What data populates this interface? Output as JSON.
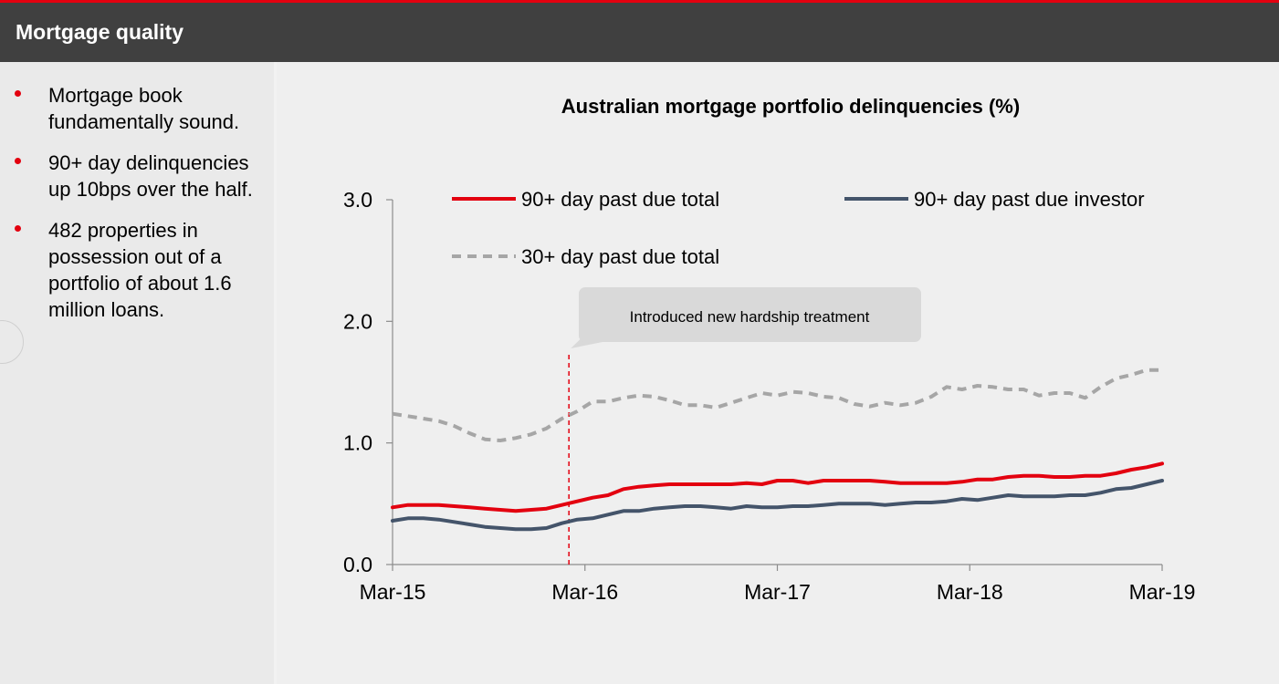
{
  "header": {
    "title": "Mortgage quality"
  },
  "sidebar": {
    "bullets": [
      "Mortgage book fundamentally sound.",
      "90+ day delinquencies up 10bps over the half.",
      "482 properties in possession out of a portfolio of about 1.6 million loans."
    ]
  },
  "colors": {
    "accent": "#e3000f",
    "header": "#404040",
    "investor": "#44546a",
    "thirty": "#a6a6a6"
  },
  "chart_data": {
    "type": "line",
    "title": "Australian mortgage portfolio delinquencies (%)",
    "xlabel": "",
    "ylabel": "",
    "x_tick_labels": [
      "Mar-15",
      "Mar-16",
      "Mar-17",
      "Mar-18",
      "Mar-19"
    ],
    "y_tick_labels": [
      "3.0",
      "2.0",
      "1.0",
      "0.0"
    ],
    "ylim": [
      0,
      3
    ],
    "x_start": "Mar-15",
    "x_end": "Mar-19",
    "grid": false,
    "legend_position": "top",
    "annotation": {
      "text": "Introduced new hardship treatment",
      "x": "Feb-16"
    },
    "series": [
      {
        "name": "90+ day past due total",
        "style": "solid",
        "color": "#e3000f",
        "values": [
          0.47,
          0.49,
          0.49,
          0.49,
          0.48,
          0.47,
          0.46,
          0.45,
          0.44,
          0.45,
          0.46,
          0.49,
          0.52,
          0.55,
          0.57,
          0.62,
          0.64,
          0.65,
          0.66,
          0.66,
          0.66,
          0.66,
          0.66,
          0.67,
          0.66,
          0.69,
          0.69,
          0.67,
          0.69,
          0.69,
          0.69,
          0.69,
          0.68,
          0.67,
          0.67,
          0.67,
          0.67,
          0.68,
          0.7,
          0.7,
          0.72,
          0.73,
          0.73,
          0.72,
          0.72,
          0.73,
          0.73,
          0.75,
          0.78,
          0.8,
          0.83
        ]
      },
      {
        "name": "90+ day past due investor",
        "style": "solid",
        "color": "#44546a",
        "values": [
          0.36,
          0.38,
          0.38,
          0.37,
          0.35,
          0.33,
          0.31,
          0.3,
          0.29,
          0.29,
          0.3,
          0.34,
          0.37,
          0.38,
          0.41,
          0.44,
          0.44,
          0.46,
          0.47,
          0.48,
          0.48,
          0.47,
          0.46,
          0.48,
          0.47,
          0.47,
          0.48,
          0.48,
          0.49,
          0.5,
          0.5,
          0.5,
          0.49,
          0.5,
          0.51,
          0.51,
          0.52,
          0.54,
          0.53,
          0.55,
          0.57,
          0.56,
          0.56,
          0.56,
          0.57,
          0.57,
          0.59,
          0.62,
          0.63,
          0.66,
          0.69
        ]
      },
      {
        "name": "30+ day past due total",
        "style": "dashed",
        "color": "#a6a6a6",
        "values": [
          1.24,
          1.22,
          1.2,
          1.18,
          1.14,
          1.08,
          1.03,
          1.02,
          1.04,
          1.07,
          1.12,
          1.2,
          1.26,
          1.34,
          1.34,
          1.37,
          1.39,
          1.38,
          1.35,
          1.31,
          1.31,
          1.29,
          1.33,
          1.37,
          1.41,
          1.39,
          1.42,
          1.41,
          1.38,
          1.37,
          1.32,
          1.3,
          1.33,
          1.31,
          1.33,
          1.38,
          1.46,
          1.44,
          1.47,
          1.46,
          1.44,
          1.44,
          1.39,
          1.41,
          1.41,
          1.37,
          1.46,
          1.53,
          1.56,
          1.6,
          1.6
        ]
      }
    ]
  }
}
